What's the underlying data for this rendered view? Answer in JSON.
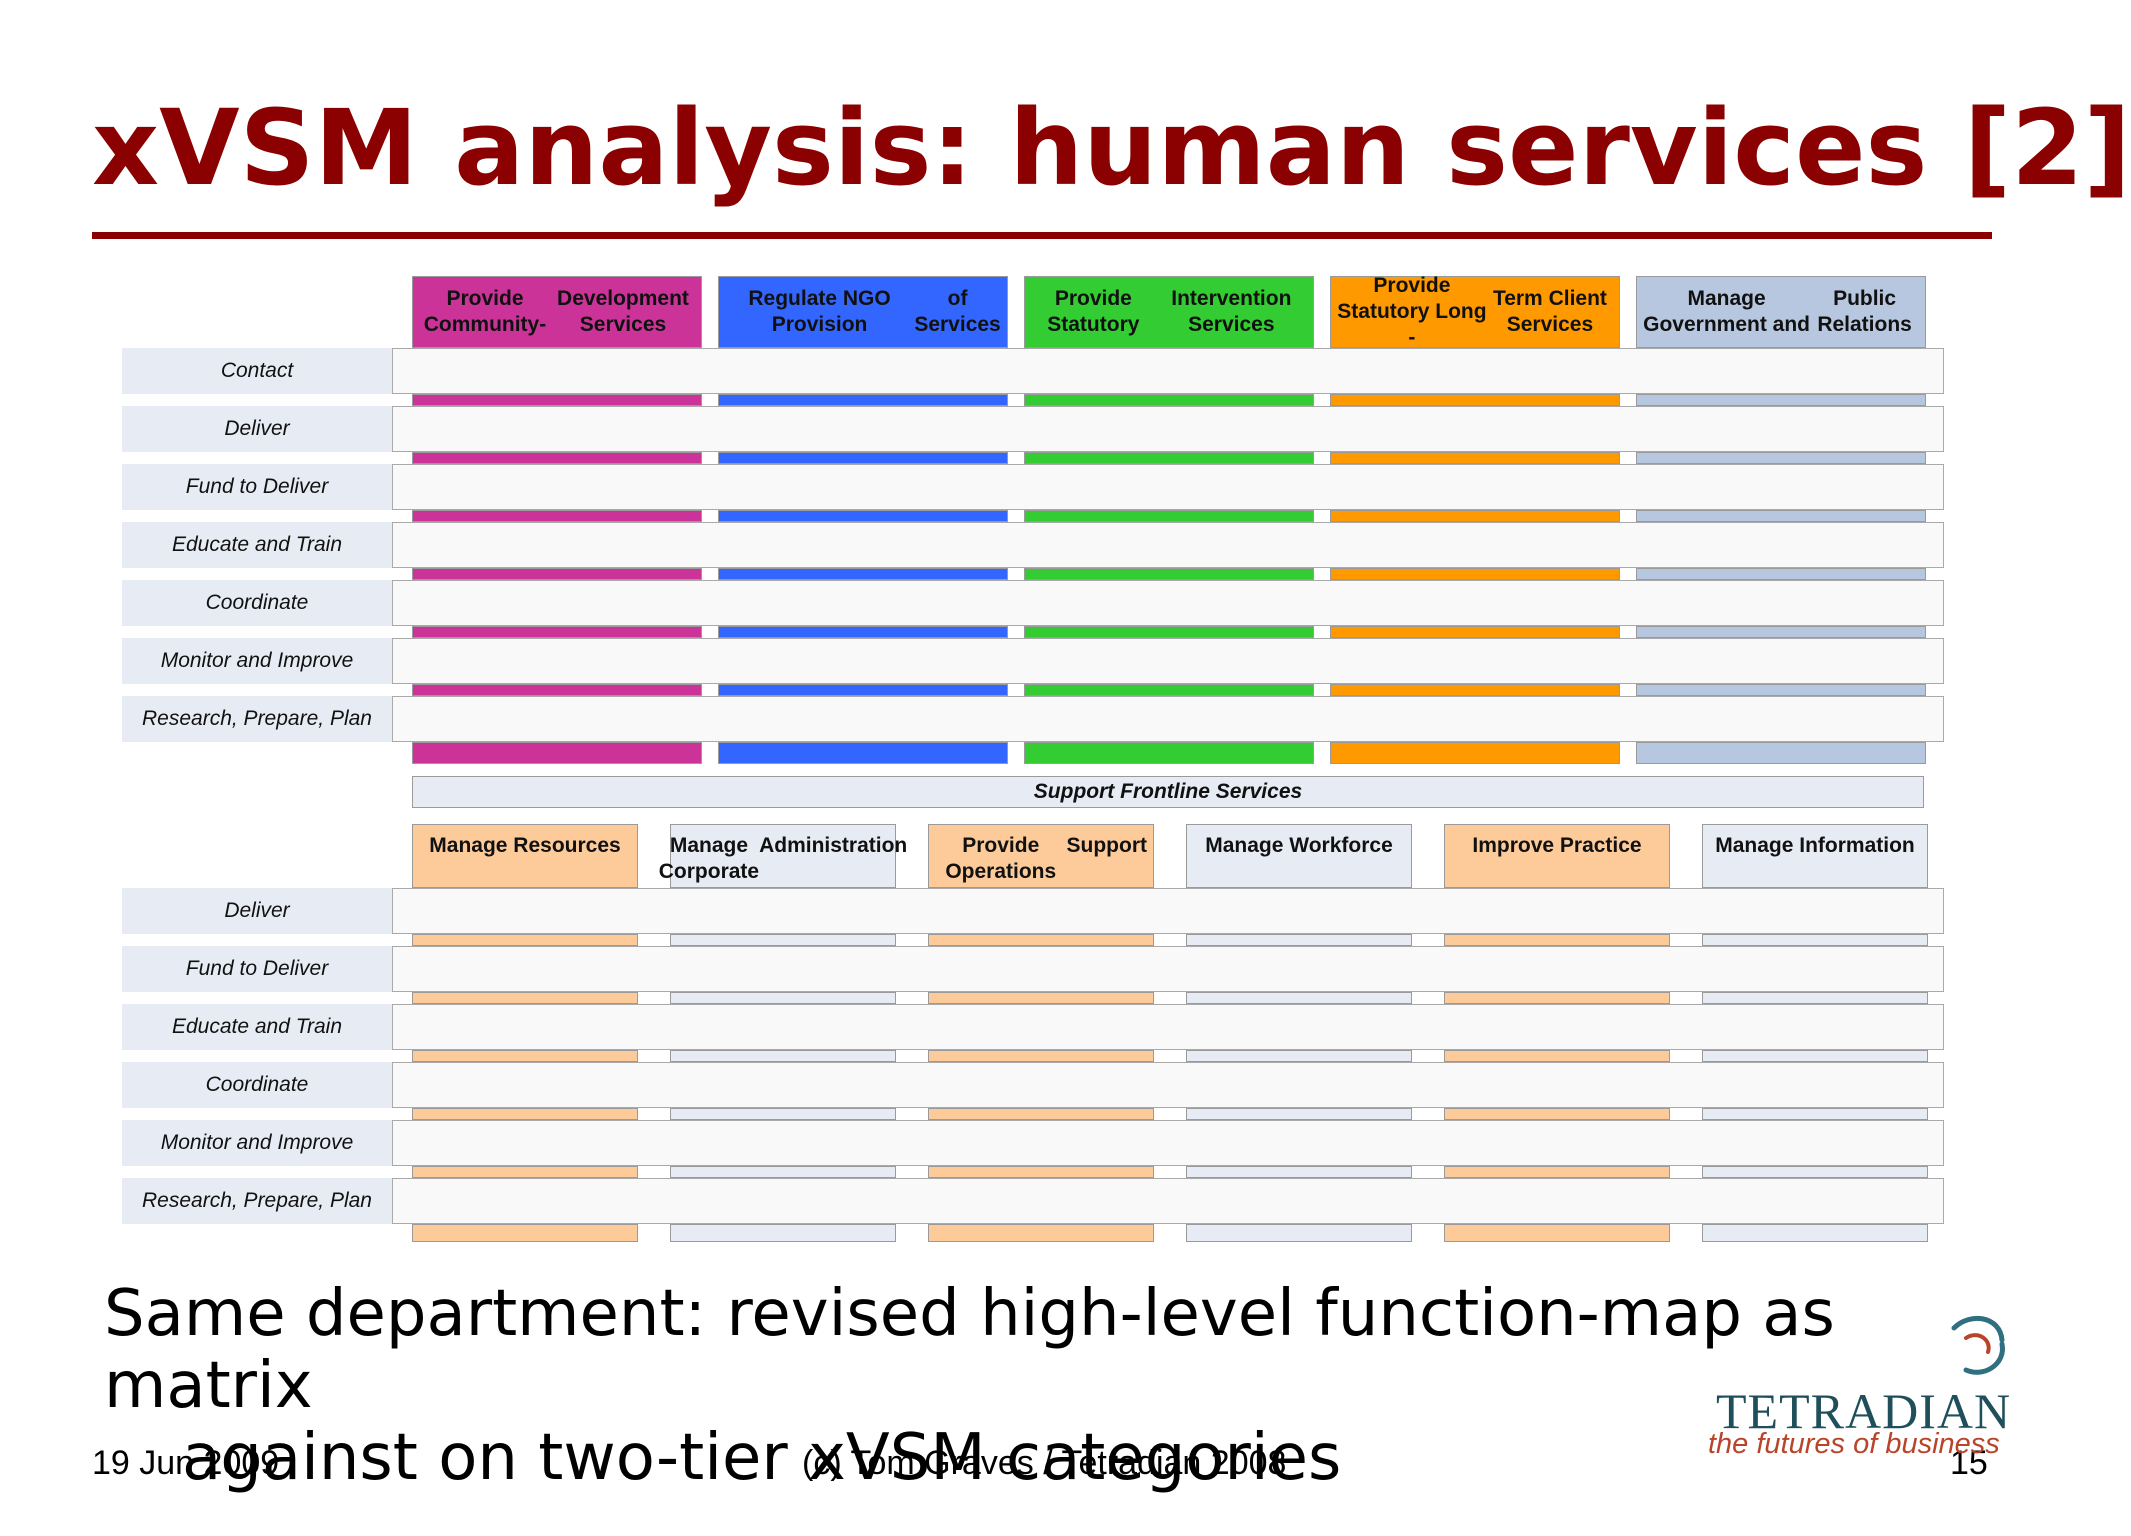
{
  "title": "xVSM analysis: human services [2]",
  "top_tier": {
    "columns": [
      {
        "label": "Provide Community-Development Services",
        "line1": "Provide Community-",
        "line2": "Development Services",
        "color": "#cc3399"
      },
      {
        "label": "Regulate NGO Provision of Services",
        "line1": "Regulate NGO Provision",
        "line2": "of Services",
        "color": "#3366ff"
      },
      {
        "label": "Provide Statutory Intervention Services",
        "line1": "Provide Statutory",
        "line2": "Intervention Services",
        "color": "#33cc33"
      },
      {
        "label": "Provide Statutory Long-Term Client Services",
        "line1": "Provide Statutory Long -",
        "line2": "Term Client Services",
        "color": "#ff9900"
      },
      {
        "label": "Manage Government and Public Relations",
        "line1": "Manage Government and",
        "line2": "Public Relations",
        "color": "#b8c7e0"
      }
    ],
    "rows": [
      "Contact",
      "Deliver",
      "Fund to Deliver",
      "Educate and Train",
      "Coordinate",
      "Monitor and Improve",
      "Research, Prepare, Plan"
    ]
  },
  "support_label": "Support Frontline Services",
  "bottom_tier": {
    "columns": [
      {
        "line1": "Manage Resources",
        "line2": "",
        "color": "#fdcb9a"
      },
      {
        "line1": "Manage Corporate",
        "line2": "Administration",
        "color": "#e7ecf4"
      },
      {
        "line1": "Provide Operations",
        "line2": "Support",
        "color": "#fdcb9a"
      },
      {
        "line1": "Manage Workforce",
        "line2": "",
        "color": "#e7ecf4"
      },
      {
        "line1": "Improve Practice",
        "line2": "",
        "color": "#fdcb9a"
      },
      {
        "line1": "Manage Information",
        "line2": "",
        "color": "#e7ecf4"
      }
    ],
    "rows": [
      "Deliver",
      "Fund to Deliver",
      "Educate and Train",
      "Coordinate",
      "Monitor and Improve",
      "Research, Prepare, Plan"
    ]
  },
  "caption": {
    "line1": "Same department: revised high-level function-map as matrix",
    "line2": "against on two-tier xVSM categories"
  },
  "footer": {
    "date": "19 Jun 2009",
    "copyright": "(c) Tom Graves / Tetradian 2008",
    "page_number": "15"
  },
  "logo": {
    "wordmark": "TETRADIAN",
    "tagline": "the futures of business"
  },
  "colors": {
    "title": "#8b0000",
    "row_label_bg": "#e7ecf4",
    "row_band_bg": "#f9f9f9"
  }
}
